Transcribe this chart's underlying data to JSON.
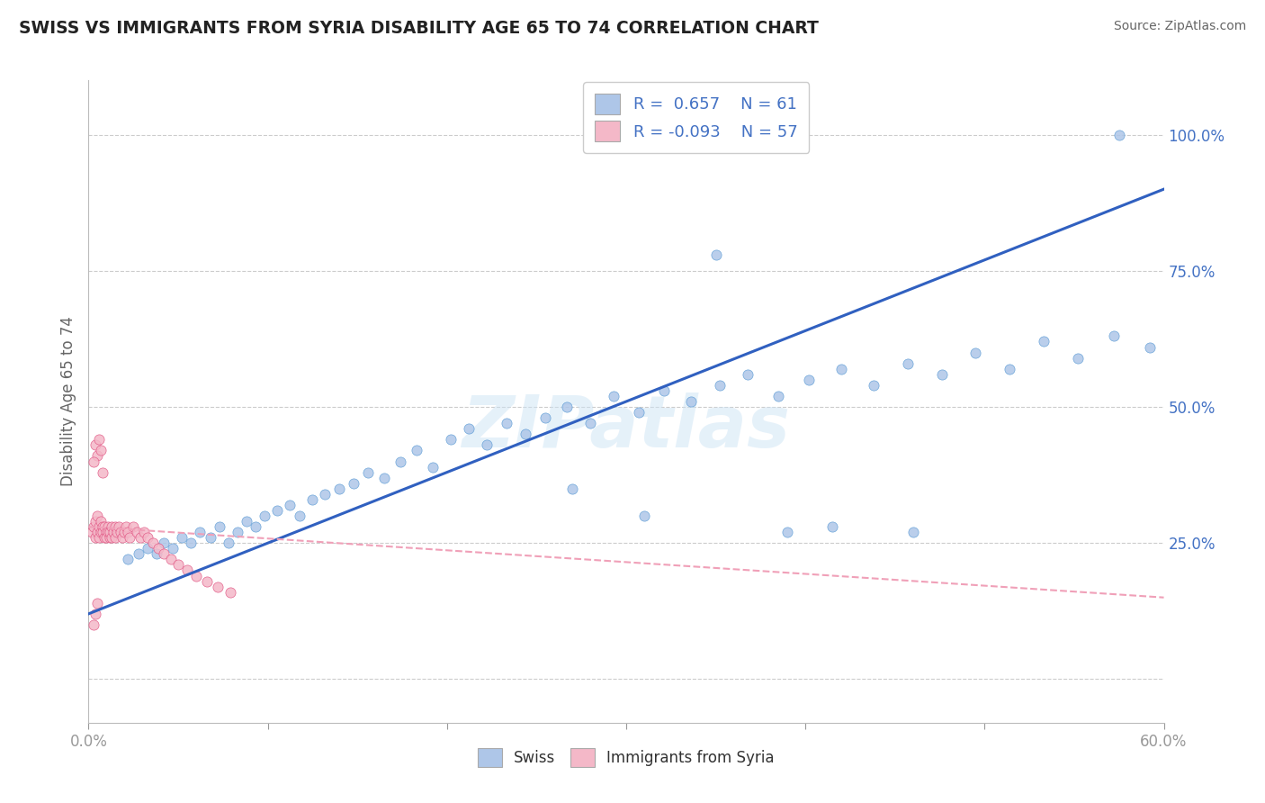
{
  "title": "SWISS VS IMMIGRANTS FROM SYRIA DISABILITY AGE 65 TO 74 CORRELATION CHART",
  "source": "Source: ZipAtlas.com",
  "ylabel": "Disability Age 65 to 74",
  "watermark": "ZIPatlas",
  "legend_swiss_R": "0.657",
  "legend_swiss_N": "61",
  "legend_syria_R": "-0.093",
  "legend_syria_N": "57",
  "swiss_color": "#aec6e8",
  "swiss_edge_color": "#5b9bd5",
  "syria_color": "#f4b8c8",
  "syria_edge_color": "#e05080",
  "swiss_line_color": "#3060c0",
  "syria_line_color": "#f0a0b8",
  "blue_text_color": "#4472c4",
  "xlim": [
    0.0,
    0.6
  ],
  "ylim": [
    -0.08,
    1.1
  ],
  "ytick_positions": [
    0.0,
    0.25,
    0.5,
    0.75,
    1.0
  ],
  "ytick_labels": [
    "",
    "25.0%",
    "50.0%",
    "75.0%",
    "100.0%"
  ],
  "xtick_positions": [
    0.0,
    0.1,
    0.2,
    0.3,
    0.4,
    0.5,
    0.6
  ],
  "xtick_labels": [
    "0.0%",
    "",
    "",
    "",
    "",
    "",
    "60.0%"
  ],
  "swiss_x": [
    0.022,
    0.028,
    0.033,
    0.038,
    0.042,
    0.047,
    0.052,
    0.057,
    0.062,
    0.068,
    0.073,
    0.078,
    0.083,
    0.088,
    0.093,
    0.098,
    0.105,
    0.112,
    0.118,
    0.125,
    0.132,
    0.14,
    0.148,
    0.156,
    0.165,
    0.174,
    0.183,
    0.192,
    0.202,
    0.212,
    0.222,
    0.233,
    0.244,
    0.255,
    0.267,
    0.28,
    0.293,
    0.307,
    0.321,
    0.336,
    0.352,
    0.368,
    0.385,
    0.402,
    0.42,
    0.438,
    0.457,
    0.476,
    0.495,
    0.514,
    0.533,
    0.552,
    0.572,
    0.592,
    0.35,
    0.27,
    0.31,
    0.39,
    0.415,
    0.46,
    0.575
  ],
  "swiss_y": [
    0.22,
    0.23,
    0.24,
    0.23,
    0.25,
    0.24,
    0.26,
    0.25,
    0.27,
    0.26,
    0.28,
    0.25,
    0.27,
    0.29,
    0.28,
    0.3,
    0.31,
    0.32,
    0.3,
    0.33,
    0.34,
    0.35,
    0.36,
    0.38,
    0.37,
    0.4,
    0.42,
    0.39,
    0.44,
    0.46,
    0.43,
    0.47,
    0.45,
    0.48,
    0.5,
    0.47,
    0.52,
    0.49,
    0.53,
    0.51,
    0.54,
    0.56,
    0.52,
    0.55,
    0.57,
    0.54,
    0.58,
    0.56,
    0.6,
    0.57,
    0.62,
    0.59,
    0.63,
    0.61,
    0.78,
    0.35,
    0.3,
    0.27,
    0.28,
    0.27,
    1.0
  ],
  "syria_x": [
    0.002,
    0.003,
    0.004,
    0.004,
    0.005,
    0.005,
    0.006,
    0.006,
    0.007,
    0.007,
    0.008,
    0.008,
    0.009,
    0.009,
    0.01,
    0.01,
    0.011,
    0.011,
    0.012,
    0.012,
    0.013,
    0.013,
    0.014,
    0.015,
    0.015,
    0.016,
    0.017,
    0.018,
    0.019,
    0.02,
    0.021,
    0.022,
    0.023,
    0.025,
    0.027,
    0.029,
    0.031,
    0.033,
    0.036,
    0.039,
    0.042,
    0.046,
    0.05,
    0.055,
    0.06,
    0.066,
    0.072,
    0.079,
    0.004,
    0.005,
    0.006,
    0.007,
    0.003,
    0.008,
    0.003,
    0.004,
    0.005
  ],
  "syria_y": [
    0.27,
    0.28,
    0.26,
    0.29,
    0.27,
    0.3,
    0.28,
    0.26,
    0.27,
    0.29,
    0.28,
    0.27,
    0.26,
    0.28,
    0.27,
    0.26,
    0.28,
    0.27,
    0.26,
    0.27,
    0.28,
    0.26,
    0.27,
    0.28,
    0.26,
    0.27,
    0.28,
    0.27,
    0.26,
    0.27,
    0.28,
    0.27,
    0.26,
    0.28,
    0.27,
    0.26,
    0.27,
    0.26,
    0.25,
    0.24,
    0.23,
    0.22,
    0.21,
    0.2,
    0.19,
    0.18,
    0.17,
    0.16,
    0.43,
    0.41,
    0.44,
    0.42,
    0.4,
    0.38,
    0.1,
    0.12,
    0.14
  ],
  "swiss_line_x": [
    0.0,
    0.6
  ],
  "swiss_line_y": [
    0.12,
    0.9
  ],
  "syria_line_x": [
    0.0,
    0.6
  ],
  "syria_line_y": [
    0.28,
    0.15
  ]
}
